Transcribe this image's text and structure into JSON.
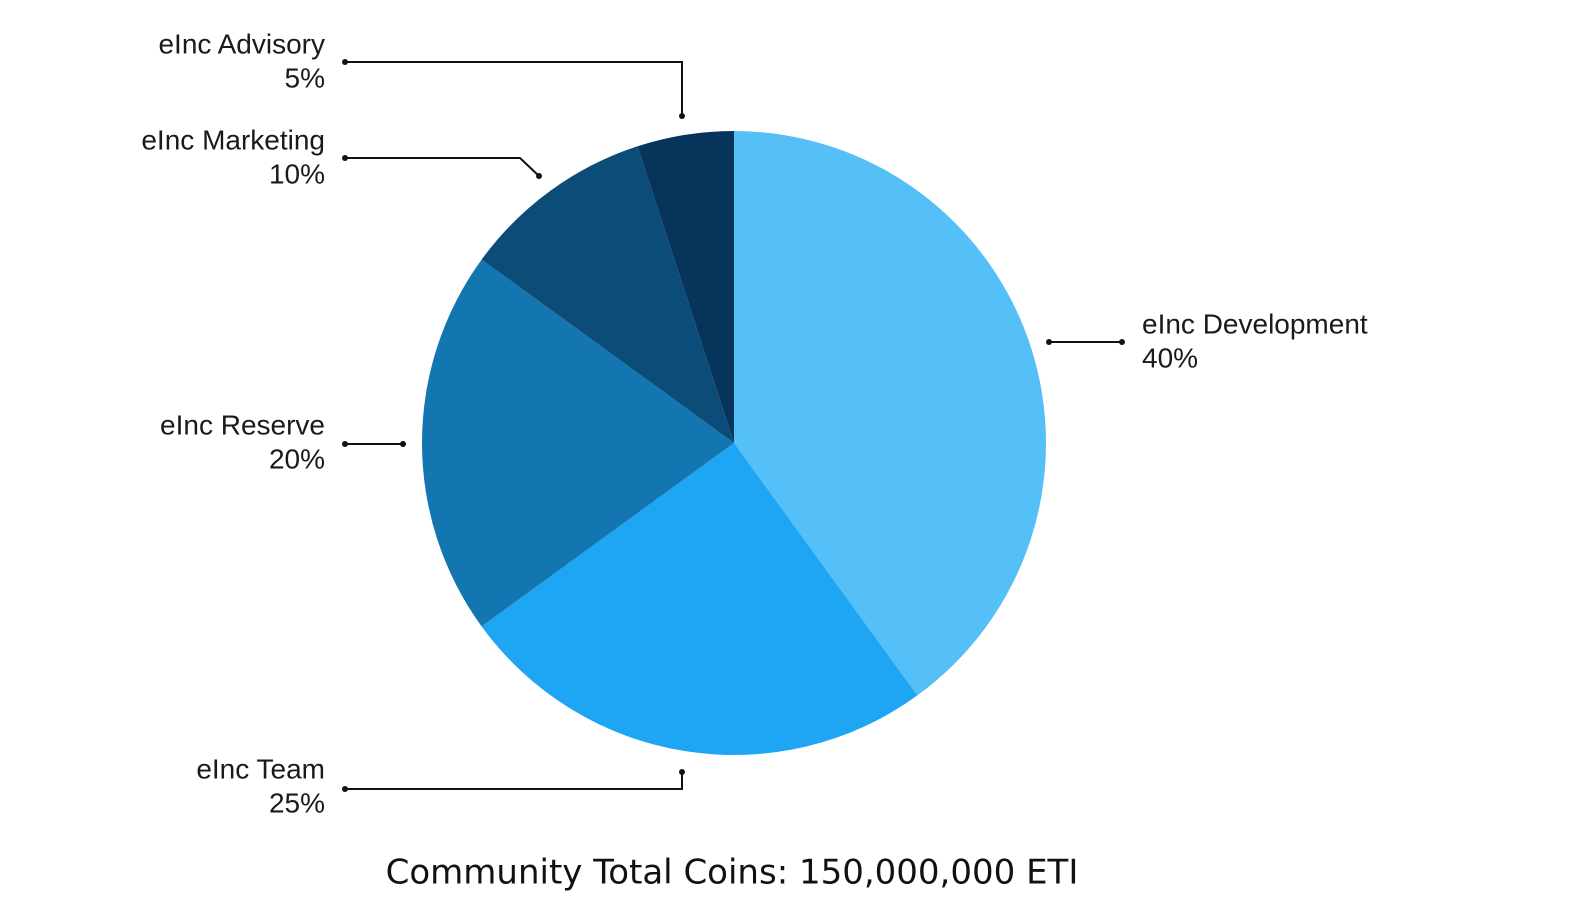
{
  "chart_data": {
    "type": "pie",
    "categories": [
      "eInc Development",
      "eInc Team",
      "eInc Reserve",
      "eInc Marketing",
      "eInc Advisory"
    ],
    "values": [
      40,
      25,
      20,
      10,
      5
    ],
    "value_labels": [
      "40%",
      "25%",
      "20%",
      "10%",
      "5%"
    ],
    "colors": [
      "#54c0f7",
      "#1ea5f3",
      "#1476b0",
      "#0b4d78",
      "#06345a"
    ],
    "caption": "Community Total Coins: 150,000,000 ETI"
  }
}
